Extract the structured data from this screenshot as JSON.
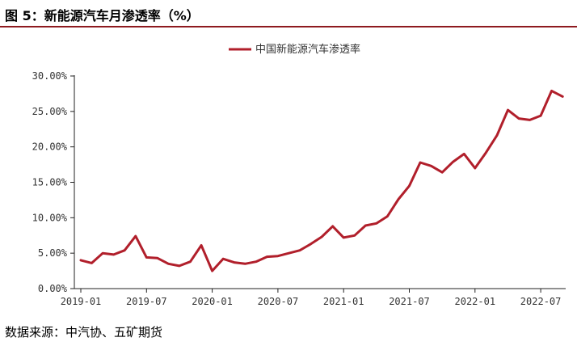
{
  "figure_title": "图 5：新能源汽车月渗透率（%）",
  "source_note": "数据来源：中汽协、五矿期货",
  "chart_data": {
    "type": "line",
    "y_ticks": [
      "0.00%",
      "5.00%",
      "10.00%",
      "15.00%",
      "20.00%",
      "25.00%",
      "30.00%"
    ],
    "x_ticks": [
      "2019-01",
      "2019-07",
      "2020-01",
      "2020-07",
      "2021-01",
      "2021-07",
      "2022-01",
      "2022-07"
    ],
    "ylim": [
      0,
      30
    ],
    "grid": false,
    "legend_position": "top-center",
    "x": [
      "2019-01",
      "2019-02",
      "2019-03",
      "2019-04",
      "2019-05",
      "2019-06",
      "2019-07",
      "2019-08",
      "2019-09",
      "2019-10",
      "2019-11",
      "2019-12",
      "2020-01",
      "2020-02",
      "2020-03",
      "2020-04",
      "2020-05",
      "2020-06",
      "2020-07",
      "2020-08",
      "2020-09",
      "2020-10",
      "2020-11",
      "2020-12",
      "2021-01",
      "2021-02",
      "2021-03",
      "2021-04",
      "2021-05",
      "2021-06",
      "2021-07",
      "2021-08",
      "2021-09",
      "2021-10",
      "2021-11",
      "2021-12",
      "2022-01",
      "2022-02",
      "2022-03",
      "2022-04",
      "2022-05",
      "2022-06",
      "2022-07",
      "2022-08",
      "2022-09"
    ],
    "series": [
      {
        "name": "中国新能源汽车渗透率",
        "color": "#b11f2b",
        "values": [
          4.0,
          3.6,
          5.0,
          4.8,
          5.4,
          7.4,
          4.4,
          4.3,
          3.5,
          3.2,
          3.8,
          6.1,
          2.5,
          4.2,
          3.7,
          3.5,
          3.8,
          4.5,
          4.6,
          5.0,
          5.4,
          6.3,
          7.3,
          8.8,
          7.2,
          7.5,
          8.9,
          9.2,
          10.2,
          12.6,
          14.5,
          17.8,
          17.3,
          16.4,
          17.9,
          19.0,
          17.0,
          19.2,
          21.6,
          25.2,
          24.0,
          23.8,
          24.4,
          27.9,
          27.1
        ]
      }
    ]
  }
}
